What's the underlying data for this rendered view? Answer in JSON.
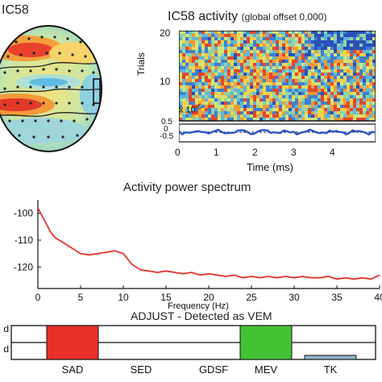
{
  "scalp_map": {
    "title": "IC58"
  },
  "erp_image": {
    "title": "IC58 activity",
    "title_suffix": "(global offset 0.000)",
    "ylabel": "Trials",
    "yticks": [
      "20",
      "10",
      "0"
    ],
    "xlabel": "Time (ms)",
    "xticks": [
      "0",
      "1",
      "2",
      "3",
      "4"
    ],
    "scale_label": "x 10",
    "scale_exp": "-5",
    "lower_yticks": [
      "0.5",
      "0",
      "-0.5"
    ]
  },
  "chart_data": [
    {
      "type": "line",
      "title": "Activity power spectrum",
      "xlabel": "Frequency (Hz)",
      "ylabel": "",
      "xlim": [
        0,
        40
      ],
      "ylim": [
        -128,
        -95
      ],
      "xticks": [
        "0",
        "5",
        "10",
        "15",
        "20",
        "25",
        "30",
        "35",
        "40"
      ],
      "yticks": [
        "-100",
        "-110",
        "-120"
      ],
      "color": "#e8322a",
      "x": [
        0,
        0.5,
        1,
        1.5,
        2,
        3,
        4,
        5,
        6,
        7,
        8,
        9,
        10,
        10.5,
        11,
        12,
        13,
        14,
        15,
        16,
        17,
        18,
        19,
        20,
        21,
        22,
        23,
        24,
        25,
        26,
        27,
        28,
        29,
        30,
        31,
        32,
        33,
        34,
        35,
        36,
        37,
        38,
        39,
        40
      ],
      "y": [
        -98,
        -101,
        -104,
        -107,
        -109,
        -111,
        -113,
        -115,
        -115.5,
        -115,
        -114.5,
        -114,
        -115,
        -117,
        -119,
        -121,
        -121.5,
        -122,
        -121.5,
        -122,
        -122.5,
        -122,
        -123,
        -122.5,
        -123,
        -123.5,
        -123,
        -124,
        -123.5,
        -124,
        -123.5,
        -124,
        -123.5,
        -124,
        -123.5,
        -124,
        -124,
        -123.5,
        -124.5,
        -124,
        -124.5,
        -124,
        -124.5,
        -123
      ]
    },
    {
      "type": "bar",
      "title": "ADJUST - Detected as VEM",
      "categories": [
        "SAD",
        "SED",
        "GDSF",
        "MEV",
        "TK"
      ],
      "values": [
        1,
        0,
        0,
        1,
        0.12
      ],
      "colors": [
        "#e8302a",
        "#e8302a",
        "#e8302a",
        "#44c236",
        "#8fb7c8"
      ],
      "ylabels": [
        "d",
        "d"
      ],
      "ylim": [
        0,
        1
      ]
    }
  ]
}
